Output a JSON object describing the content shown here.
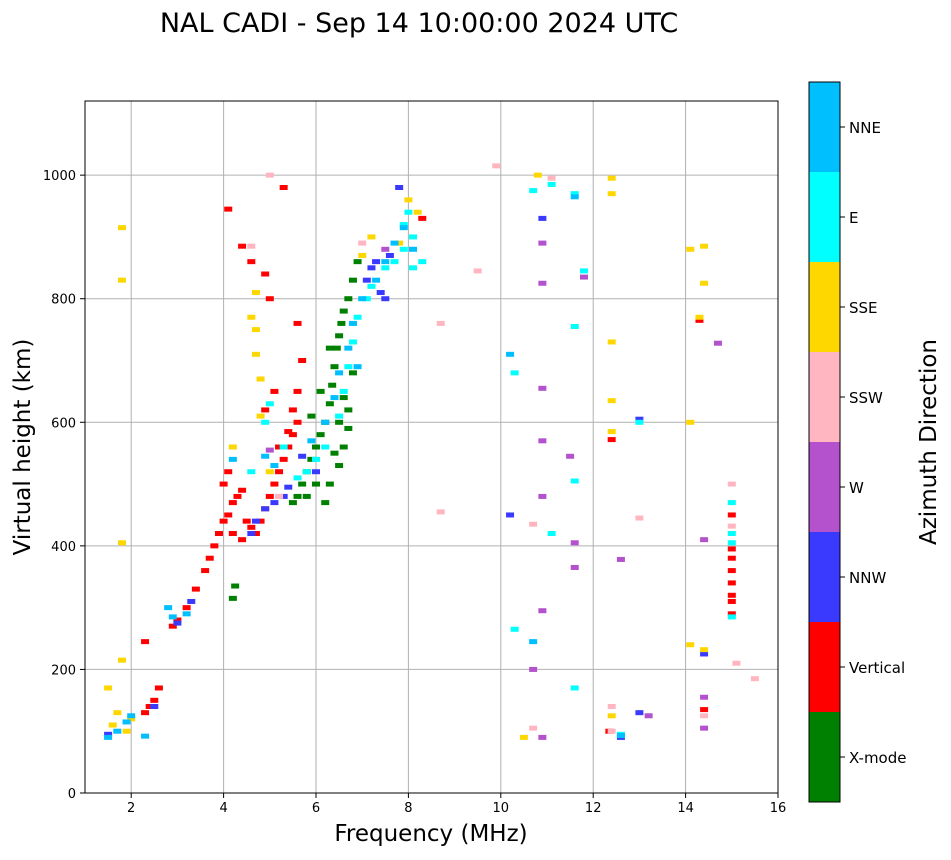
{
  "chart_data": {
    "type": "scatter",
    "title": "NAL CADI - Sep 14 10:00:00 2024 UTC",
    "xlabel": "Frequency (MHz)",
    "ylabel": "Virtual height (km)",
    "xlim": [
      1,
      16
    ],
    "ylim": [
      0,
      1120
    ],
    "xticks": [
      "2",
      "4",
      "6",
      "8",
      "10",
      "12",
      "14",
      "16"
    ],
    "yticks": [
      "0",
      "200",
      "400",
      "600",
      "800",
      "1000"
    ],
    "grid": true,
    "colorbar": {
      "label": "Azimuth Direction",
      "categories": [
        "X-mode",
        "Vertical",
        "NNW",
        "W",
        "SSW",
        "SSE",
        "E",
        "NNE"
      ],
      "colors": [
        "#008000",
        "#ff0000",
        "#3a3aff",
        "#b452cd",
        "#ffb6c1",
        "#ffd700",
        "#00ffff",
        "#00bfff"
      ]
    },
    "series": [
      {
        "name": "X-mode",
        "points": [
          [
            5.5,
            470
          ],
          [
            5.6,
            480
          ],
          [
            5.7,
            500
          ],
          [
            5.8,
            520
          ],
          [
            5.9,
            540
          ],
          [
            6.0,
            560
          ],
          [
            6.1,
            580
          ],
          [
            6.2,
            600
          ],
          [
            6.3,
            630
          ],
          [
            6.35,
            660
          ],
          [
            6.4,
            690
          ],
          [
            6.45,
            720
          ],
          [
            6.5,
            740
          ],
          [
            6.55,
            760
          ],
          [
            6.6,
            780
          ],
          [
            6.7,
            800
          ],
          [
            6.8,
            830
          ],
          [
            6.9,
            860
          ],
          [
            6.2,
            470
          ],
          [
            6.3,
            500
          ],
          [
            6.5,
            530
          ],
          [
            6.6,
            560
          ],
          [
            6.7,
            590
          ],
          [
            6.0,
            500
          ],
          [
            5.8,
            480
          ],
          [
            6.4,
            550
          ],
          [
            6.5,
            600
          ],
          [
            6.6,
            640
          ],
          [
            6.3,
            720
          ],
          [
            6.7,
            620
          ],
          [
            4.2,
            315
          ],
          [
            4.25,
            335
          ],
          [
            6.8,
            680
          ],
          [
            5.9,
            610
          ],
          [
            6.1,
            650
          ]
        ]
      },
      {
        "name": "Vertical",
        "points": [
          [
            2.3,
            130
          ],
          [
            2.4,
            140
          ],
          [
            2.5,
            150
          ],
          [
            2.6,
            170
          ],
          [
            2.9,
            270
          ],
          [
            3.0,
            280
          ],
          [
            3.2,
            300
          ],
          [
            3.4,
            330
          ],
          [
            3.6,
            360
          ],
          [
            3.7,
            380
          ],
          [
            3.8,
            400
          ],
          [
            3.9,
            420
          ],
          [
            4.0,
            440
          ],
          [
            4.1,
            450
          ],
          [
            4.2,
            470
          ],
          [
            4.3,
            480
          ],
          [
            4.4,
            490
          ],
          [
            4.5,
            440
          ],
          [
            4.6,
            430
          ],
          [
            4.7,
            420
          ],
          [
            4.8,
            440
          ],
          [
            4.9,
            460
          ],
          [
            5.0,
            480
          ],
          [
            5.1,
            500
          ],
          [
            5.2,
            520
          ],
          [
            5.3,
            540
          ],
          [
            5.4,
            560
          ],
          [
            5.5,
            580
          ],
          [
            5.6,
            600
          ],
          [
            5.5,
            620
          ],
          [
            5.6,
            650
          ],
          [
            5.7,
            700
          ],
          [
            5.6,
            760
          ],
          [
            5.3,
            980
          ],
          [
            4.1,
            945
          ],
          [
            4.4,
            885
          ],
          [
            4.6,
            860
          ],
          [
            4.9,
            840
          ],
          [
            5.0,
            800
          ],
          [
            4.9,
            620
          ],
          [
            5.1,
            650
          ],
          [
            4.0,
            500
          ],
          [
            4.2,
            420
          ],
          [
            4.4,
            410
          ],
          [
            4.1,
            520
          ],
          [
            12.4,
            572
          ],
          [
            14.4,
            135
          ],
          [
            12.35,
            100
          ],
          [
            15.0,
            290
          ],
          [
            15.0,
            310
          ],
          [
            15.0,
            320
          ],
          [
            15.0,
            340
          ],
          [
            15.0,
            360
          ],
          [
            15.0,
            380
          ],
          [
            15.0,
            395
          ],
          [
            15.0,
            450
          ],
          [
            14.3,
            765
          ],
          [
            8.3,
            930
          ],
          [
            2.3,
            245
          ],
          [
            5.4,
            585
          ],
          [
            5.2,
            560
          ]
        ]
      },
      {
        "name": "NNW",
        "points": [
          [
            3.0,
            275
          ],
          [
            3.3,
            310
          ],
          [
            4.6,
            420
          ],
          [
            4.7,
            440
          ],
          [
            4.9,
            460
          ],
          [
            5.1,
            470
          ],
          [
            5.3,
            480
          ],
          [
            5.4,
            495
          ],
          [
            7.1,
            830
          ],
          [
            7.2,
            850
          ],
          [
            7.3,
            860
          ],
          [
            7.4,
            810
          ],
          [
            7.5,
            800
          ],
          [
            7.6,
            870
          ],
          [
            7.8,
            980
          ],
          [
            10.9,
            930
          ],
          [
            10.2,
            450
          ],
          [
            13.0,
            605
          ],
          [
            13.0,
            130
          ],
          [
            12.6,
            90
          ],
          [
            14.4,
            225
          ],
          [
            2.5,
            140
          ],
          [
            1.5,
            95
          ],
          [
            6.0,
            520
          ],
          [
            5.7,
            545
          ]
        ]
      },
      {
        "name": "W",
        "points": [
          [
            10.9,
            890
          ],
          [
            10.9,
            825
          ],
          [
            10.9,
            655
          ],
          [
            10.9,
            570
          ],
          [
            10.9,
            480
          ],
          [
            10.9,
            295
          ],
          [
            10.7,
            200
          ],
          [
            10.9,
            90
          ],
          [
            11.6,
            405
          ],
          [
            11.6,
            365
          ],
          [
            11.5,
            545
          ],
          [
            11.8,
            835
          ],
          [
            12.6,
            378
          ],
          [
            13.2,
            125
          ],
          [
            14.4,
            410
          ],
          [
            14.4,
            155
          ],
          [
            14.7,
            728
          ],
          [
            14.4,
            105
          ],
          [
            7.5,
            880
          ],
          [
            5.0,
            555
          ]
        ]
      },
      {
        "name": "SSW",
        "points": [
          [
            5.0,
            1000
          ],
          [
            8.7,
            760
          ],
          [
            8.7,
            455
          ],
          [
            9.5,
            845
          ],
          [
            9.9,
            1015
          ],
          [
            10.7,
            435
          ],
          [
            10.7,
            105
          ],
          [
            11.1,
            995
          ],
          [
            12.4,
            140
          ],
          [
            12.4,
            100
          ],
          [
            13.0,
            445
          ],
          [
            15.0,
            500
          ],
          [
            15.0,
            432
          ],
          [
            15.1,
            210
          ],
          [
            15.5,
            185
          ],
          [
            14.4,
            125
          ],
          [
            4.6,
            885
          ],
          [
            7.0,
            890
          ],
          [
            5.2,
            480
          ]
        ]
      },
      {
        "name": "SSE",
        "points": [
          [
            1.8,
            915
          ],
          [
            1.8,
            830
          ],
          [
            1.8,
            405
          ],
          [
            1.5,
            170
          ],
          [
            1.8,
            215
          ],
          [
            1.7,
            130
          ],
          [
            1.6,
            110
          ],
          [
            1.9,
            100
          ],
          [
            2.0,
            120
          ],
          [
            4.7,
            810
          ],
          [
            4.6,
            770
          ],
          [
            4.7,
            750
          ],
          [
            4.7,
            710
          ],
          [
            4.8,
            670
          ],
          [
            4.8,
            610
          ],
          [
            4.2,
            560
          ],
          [
            5.0,
            520
          ],
          [
            8.0,
            960
          ],
          [
            8.2,
            940
          ],
          [
            7.8,
            890
          ],
          [
            10.8,
            1000
          ],
          [
            10.5,
            90
          ],
          [
            12.4,
            995
          ],
          [
            12.4,
            970
          ],
          [
            12.4,
            730
          ],
          [
            12.4,
            635
          ],
          [
            12.4,
            585
          ],
          [
            12.4,
            125
          ],
          [
            14.1,
            880
          ],
          [
            14.4,
            885
          ],
          [
            14.4,
            825
          ],
          [
            14.3,
            770
          ],
          [
            14.1,
            600
          ],
          [
            14.1,
            240
          ],
          [
            14.4,
            232
          ],
          [
            7.0,
            870
          ],
          [
            7.2,
            900
          ]
        ]
      },
      {
        "name": "E",
        "points": [
          [
            4.6,
            520
          ],
          [
            4.9,
            600
          ],
          [
            5.0,
            630
          ],
          [
            5.3,
            560
          ],
          [
            5.6,
            510
          ],
          [
            5.8,
            520
          ],
          [
            6.0,
            540
          ],
          [
            6.2,
            560
          ],
          [
            6.5,
            610
          ],
          [
            6.6,
            650
          ],
          [
            6.7,
            690
          ],
          [
            6.8,
            730
          ],
          [
            6.9,
            770
          ],
          [
            7.1,
            800
          ],
          [
            7.2,
            820
          ],
          [
            7.5,
            850
          ],
          [
            7.7,
            860
          ],
          [
            7.9,
            880
          ],
          [
            8.1,
            900
          ],
          [
            8.0,
            940
          ],
          [
            10.3,
            265
          ],
          [
            10.3,
            680
          ],
          [
            10.7,
            975
          ],
          [
            11.1,
            985
          ],
          [
            11.1,
            420
          ],
          [
            11.6,
            970
          ],
          [
            11.6,
            755
          ],
          [
            11.6,
            505
          ],
          [
            11.6,
            170
          ],
          [
            11.8,
            845
          ],
          [
            12.6,
            95
          ],
          [
            13.0,
            600
          ],
          [
            15.0,
            470
          ],
          [
            15.0,
            420
          ],
          [
            15.0,
            405
          ],
          [
            15.0,
            285
          ],
          [
            8.3,
            860
          ],
          [
            8.1,
            850
          ],
          [
            7.9,
            920
          ]
        ]
      },
      {
        "name": "NNE",
        "points": [
          [
            1.5,
            90
          ],
          [
            1.7,
            100
          ],
          [
            1.9,
            115
          ],
          [
            2.0,
            125
          ],
          [
            2.3,
            92
          ],
          [
            2.8,
            300
          ],
          [
            2.9,
            285
          ],
          [
            3.2,
            290
          ],
          [
            4.2,
            540
          ],
          [
            5.9,
            570
          ],
          [
            6.2,
            600
          ],
          [
            6.4,
            640
          ],
          [
            6.5,
            680
          ],
          [
            6.7,
            720
          ],
          [
            6.8,
            760
          ],
          [
            7.0,
            800
          ],
          [
            7.3,
            830
          ],
          [
            7.5,
            860
          ],
          [
            7.7,
            890
          ],
          [
            7.9,
            915
          ],
          [
            8.1,
            880
          ],
          [
            10.2,
            710
          ],
          [
            10.7,
            245
          ],
          [
            11.6,
            965
          ],
          [
            12.6,
            93
          ],
          [
            4.9,
            545
          ],
          [
            5.1,
            530
          ],
          [
            6.9,
            690
          ]
        ]
      }
    ]
  }
}
